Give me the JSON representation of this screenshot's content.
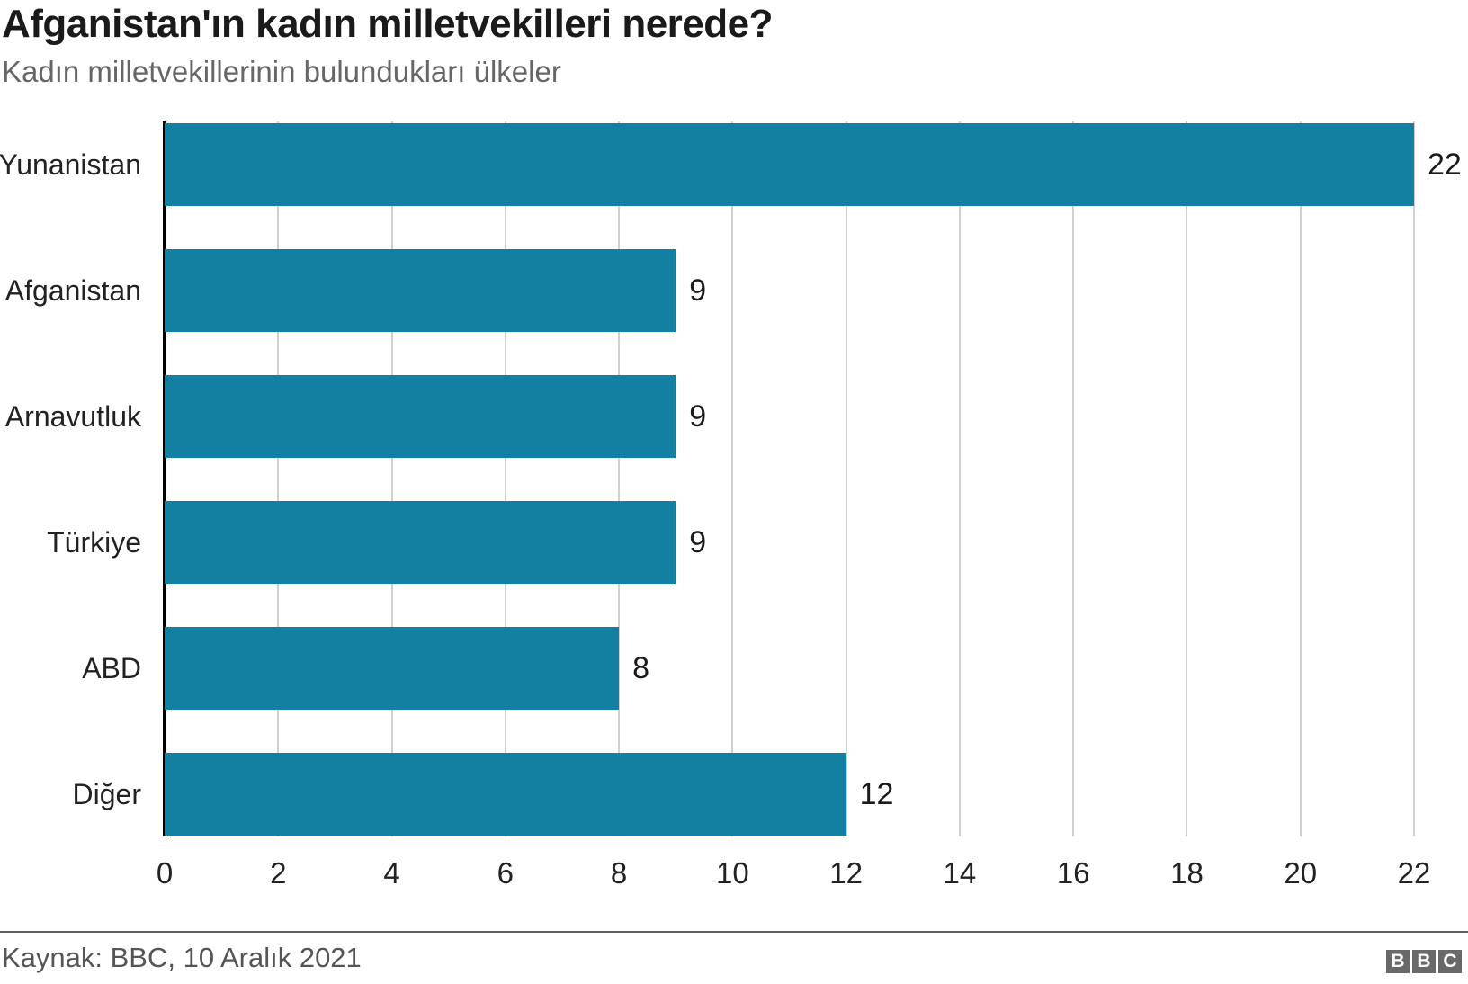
{
  "header": {
    "title": "Afganistan'ın kadın milletvekilleri nerede?",
    "subtitle": "Kadın milletvekillerinin bulundukları ülkeler"
  },
  "chart_data": {
    "type": "bar",
    "orientation": "horizontal",
    "title": "Afganistan'ın kadın milletvekilleri nerede?",
    "subtitle": "Kadın milletvekillerinin bulundukları ülkeler",
    "categories": [
      "Yunanistan",
      "Afganistan",
      "Arnavutluk",
      "Türkiye",
      "ABD",
      "Diğer"
    ],
    "values": [
      22,
      9,
      9,
      9,
      8,
      12
    ],
    "value_labels": [
      22,
      9,
      9,
      9,
      8,
      12
    ],
    "xlabel": "",
    "ylabel": "",
    "xlim": [
      0,
      22
    ],
    "xticks": [
      0,
      2,
      4,
      6,
      8,
      10,
      12,
      14,
      16,
      18,
      20,
      22
    ],
    "grid": "vertical",
    "legend": "none",
    "bar_color": "#1380A1"
  },
  "footer": {
    "source": "Kaynak: BBC, 10 Aralık 2021",
    "logo_letters": [
      "B",
      "B",
      "C"
    ]
  },
  "colors": {
    "bar": "#1380A1",
    "title_text": "#1a1a1a",
    "subtitle_text": "#666666",
    "gridline": "#d0d0d0",
    "axis": "#000000",
    "footer_text": "#555555",
    "logo_background": "#696969"
  }
}
